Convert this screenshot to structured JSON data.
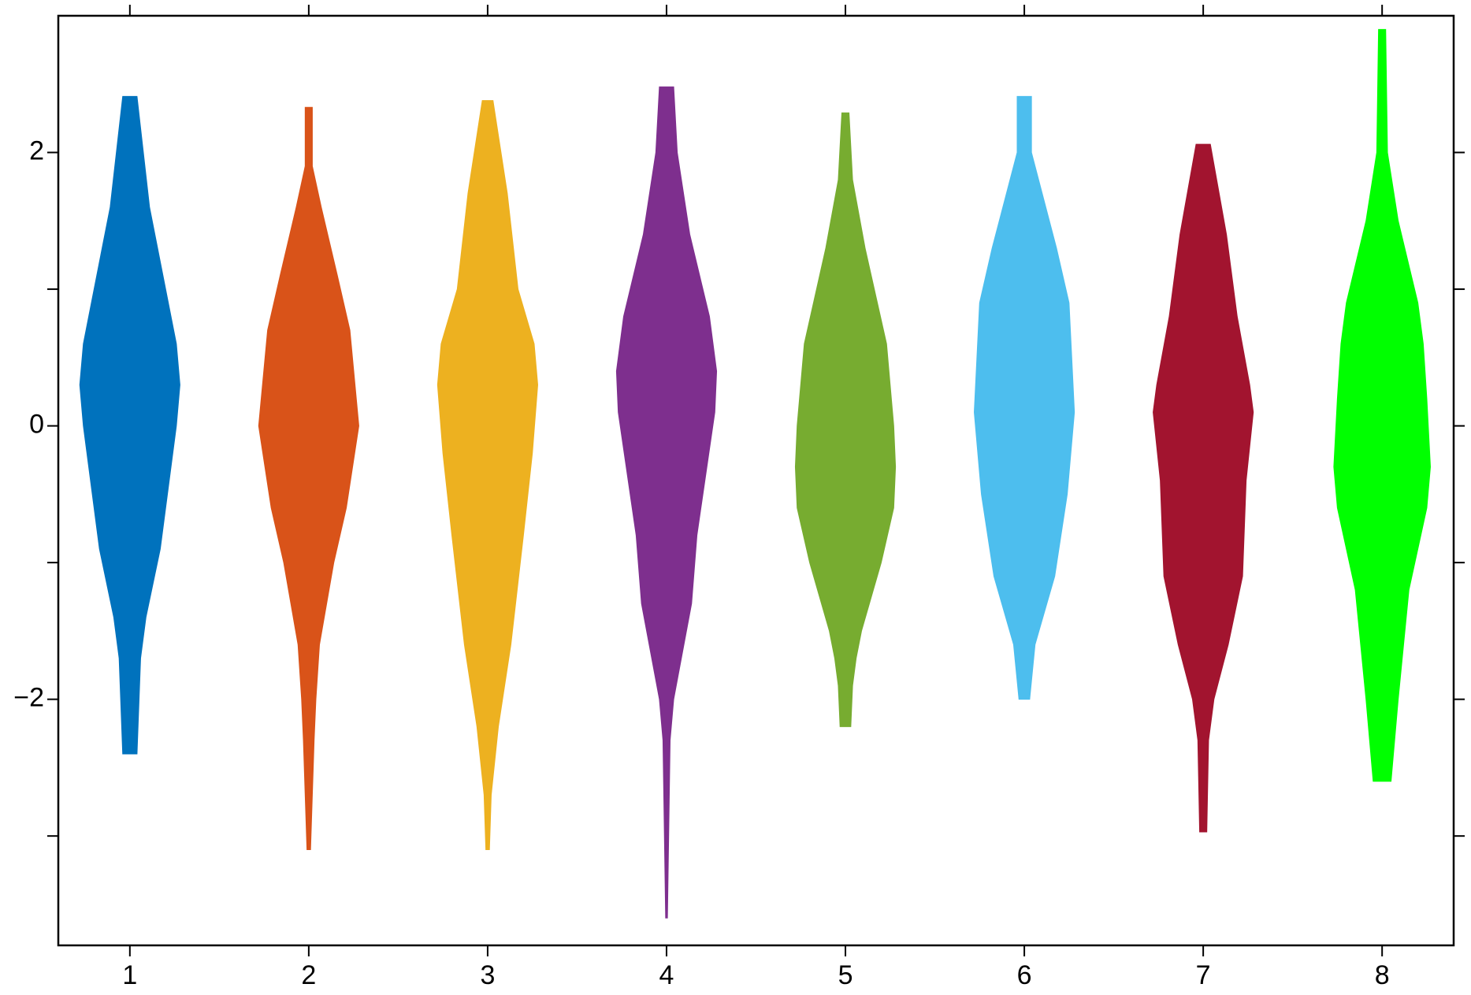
{
  "chart_data": {
    "type": "violin",
    "xlim": [
      0.6,
      8.4
    ],
    "ylim": [
      -3.8,
      3.0
    ],
    "xticks": [
      1,
      2,
      3,
      4,
      5,
      6,
      7,
      8
    ],
    "yticks": [
      {
        "value": -2,
        "label": "−2"
      },
      0,
      2
    ],
    "yminor_ticks": [
      -3,
      -1,
      1
    ],
    "mirror_ticks": true,
    "series": [
      {
        "x": 1,
        "color": "#0072bd",
        "y": [
          2.41,
          1.6,
          0.6,
          0.3,
          0,
          -0.9,
          -1.4,
          -1.7,
          -2.4
        ],
        "widths": [
          0.04,
          0.11,
          0.26,
          0.28,
          0.26,
          0.17,
          0.09,
          0.06,
          0.04
        ]
      },
      {
        "x": 2,
        "color": "#d95319",
        "y": [
          2.33,
          1.9,
          1.6,
          1.1,
          0.7,
          0,
          -0.6,
          -1.0,
          -1.6,
          -2.0,
          -2.3,
          -3.1
        ],
        "widths": [
          0.02,
          0.02,
          0.07,
          0.16,
          0.23,
          0.28,
          0.21,
          0.14,
          0.06,
          0.04,
          0.03,
          0.01
        ]
      },
      {
        "x": 3,
        "color": "#edb120",
        "y": [
          2.38,
          1.7,
          1.0,
          0.6,
          0.3,
          -0.2,
          -0.8,
          -1.6,
          -2.2,
          -2.7,
          -3.1
        ],
        "widths": [
          0.03,
          0.11,
          0.17,
          0.26,
          0.28,
          0.25,
          0.2,
          0.13,
          0.06,
          0.02,
          0.01
        ]
      },
      {
        "x": 4,
        "color": "#7e2f8e",
        "y": [
          2.48,
          2.0,
          1.4,
          0.8,
          0.4,
          0.1,
          -0.8,
          -1.3,
          -2.0,
          -2.3,
          -3.6
        ],
        "widths": [
          0.04,
          0.06,
          0.13,
          0.24,
          0.28,
          0.27,
          0.17,
          0.14,
          0.04,
          0.02,
          0.005
        ]
      },
      {
        "x": 5,
        "color": "#77ac30",
        "y": [
          2.29,
          1.8,
          1.3,
          0.6,
          0,
          -0.3,
          -0.6,
          -1.0,
          -1.5,
          -1.7,
          -1.9,
          -2.2
        ],
        "widths": [
          0.02,
          0.04,
          0.11,
          0.23,
          0.27,
          0.28,
          0.27,
          0.2,
          0.09,
          0.06,
          0.04,
          0.03
        ]
      },
      {
        "x": 6,
        "color": "#4dbeee",
        "y": [
          2.41,
          2.0,
          1.3,
          0.9,
          0.1,
          -0.5,
          -1.1,
          -1.6,
          -2.0
        ],
        "widths": [
          0.04,
          0.04,
          0.18,
          0.25,
          0.28,
          0.24,
          0.17,
          0.06,
          0.03
        ]
      },
      {
        "x": 7,
        "color": "#a2142f",
        "y": [
          2.06,
          1.4,
          0.8,
          0.3,
          0.1,
          -0.4,
          -1.1,
          -1.6,
          -2.0,
          -2.3,
          -2.97
        ],
        "widths": [
          0.04,
          0.13,
          0.19,
          0.26,
          0.28,
          0.24,
          0.22,
          0.14,
          0.06,
          0.03,
          0.02
        ]
      },
      {
        "x": 8,
        "color": "#00ff00",
        "y": [
          2.9,
          2.0,
          1.5,
          0.9,
          0.6,
          0.2,
          -0.3,
          -0.6,
          -1.2,
          -1.6,
          -2.0,
          -2.6
        ],
        "widths": [
          0.02,
          0.03,
          0.09,
          0.2,
          0.23,
          0.25,
          0.27,
          0.25,
          0.15,
          0.12,
          0.09,
          0.05
        ]
      }
    ]
  }
}
